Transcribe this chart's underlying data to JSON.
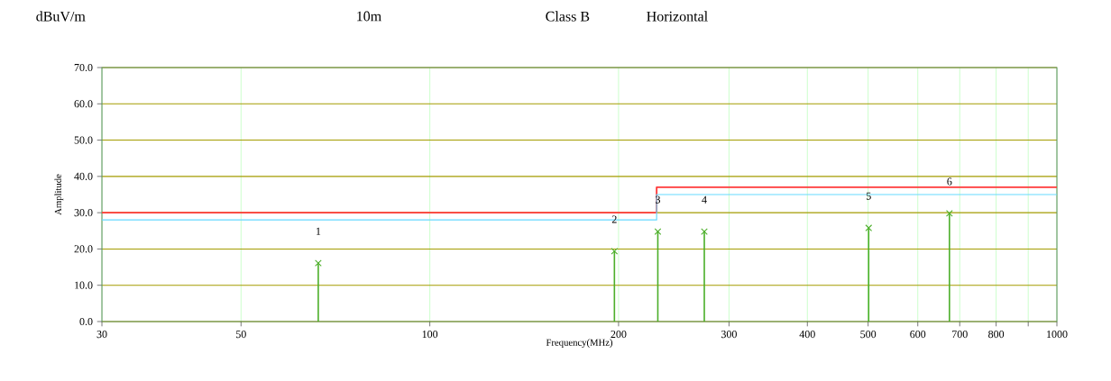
{
  "chart_data": {
    "type": "line",
    "xlabel": "Frequency(MHz)",
    "ylabel": "Amplitude",
    "log": "x",
    "grid": true,
    "xlim": [
      30,
      1000
    ],
    "ylim": [
      0,
      70
    ],
    "xticks": [
      30,
      50,
      100,
      200,
      300,
      400,
      500,
      600,
      700,
      800,
      {
        "value": 900,
        "label": null
      },
      1000
    ],
    "yticks": [
      {
        "value": 0,
        "label": "0.0"
      },
      {
        "value": 10,
        "label": "10.0"
      },
      {
        "value": 20,
        "label": "20.0"
      },
      {
        "value": 30,
        "label": "30.0"
      },
      {
        "value": 40,
        "label": "40.0"
      },
      {
        "value": 50,
        "label": "50.0"
      },
      {
        "value": 60,
        "label": "60.0"
      },
      {
        "value": 70,
        "label": "70.0"
      }
    ],
    "series": [
      {
        "color": "#ff3b3b",
        "x": [
          30,
          230,
          230,
          1000
        ],
        "values": [
          30,
          30,
          37,
          37
        ]
      },
      {
        "color": "#66d9ff",
        "x": [
          30,
          230,
          230,
          1000
        ],
        "values": [
          28,
          28,
          35,
          35
        ]
      },
      {
        "type": "lollipop",
        "color": "#4caf2a",
        "marker": "cross",
        "x": [
          66.4,
          197,
          231,
          274,
          501,
          674
        ],
        "values": [
          16.1,
          19.4,
          24.8,
          24.8,
          25.8,
          29.8
        ]
      }
    ],
    "annotations": [
      "dBuV/m",
      "10m",
      "Class B",
      "Horizontal",
      {
        "text": "1",
        "x": 66.4,
        "y": 16.1
      },
      {
        "text": "2",
        "x": 197,
        "y": 19.4
      },
      {
        "text": "3",
        "x": 231,
        "y": 24.8
      },
      {
        "text": "4",
        "x": 274,
        "y": 24.8
      },
      {
        "text": "5",
        "x": 501,
        "y": 25.8
      },
      {
        "text": "6",
        "x": 674,
        "y": 29.8
      }
    ]
  }
}
